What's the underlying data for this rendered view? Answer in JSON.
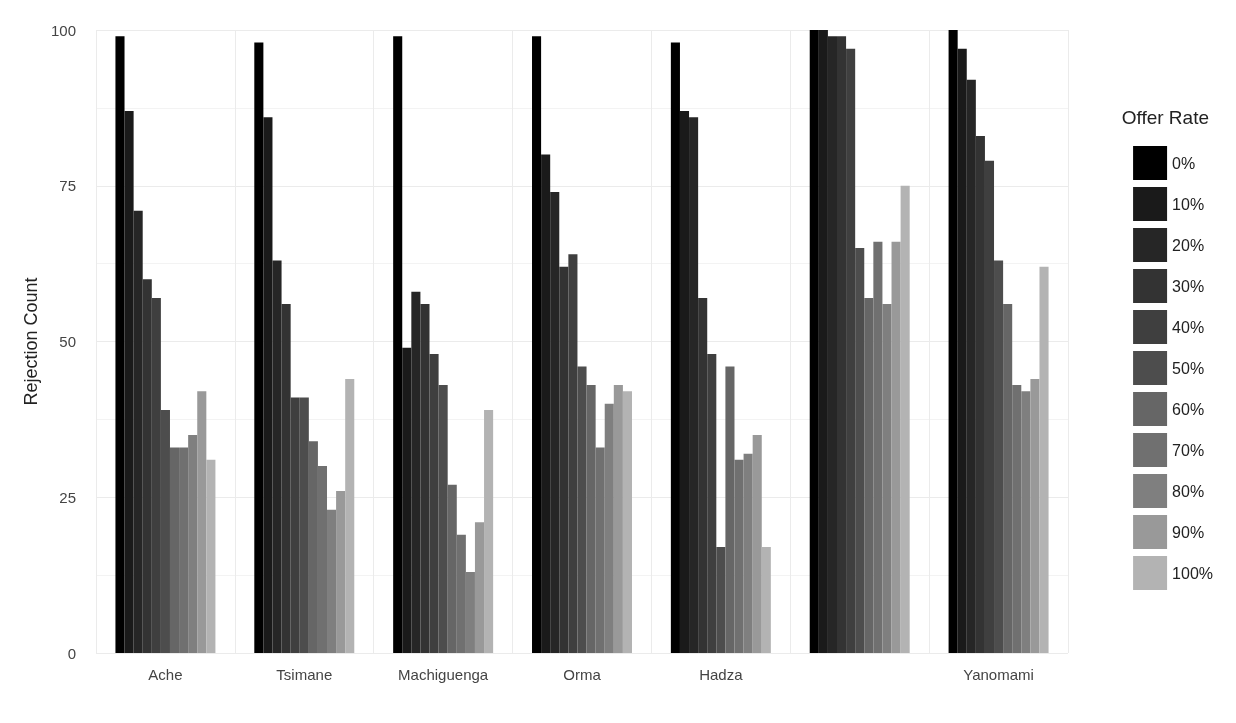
{
  "chart_data": {
    "type": "bar",
    "ylabel": "Rejection Count",
    "legend_title": "Offer Rate",
    "legend": "right",
    "grid": true,
    "categories": [
      "Ache",
      "Tsimane",
      "Machiguenga",
      "Orma",
      "Hadza",
      null,
      "Yanomami"
    ],
    "ylim": [
      0,
      100
    ],
    "yticks": [
      0,
      25,
      50,
      75,
      100
    ],
    "series": [
      {
        "name": "0%",
        "color": "#000000",
        "values": [
          99,
          98,
          99,
          99,
          98,
          100,
          100
        ]
      },
      {
        "name": "10%",
        "color": "#1a1a1a",
        "values": [
          87,
          86,
          49,
          80,
          87,
          100,
          97
        ]
      },
      {
        "name": "20%",
        "color": "#262626",
        "values": [
          71,
          63,
          58,
          74,
          86,
          99,
          92
        ]
      },
      {
        "name": "30%",
        "color": "#333333",
        "values": [
          60,
          56,
          56,
          62,
          57,
          99,
          83
        ]
      },
      {
        "name": "40%",
        "color": "#3f3f3f",
        "values": [
          57,
          41,
          48,
          64,
          48,
          97,
          79
        ]
      },
      {
        "name": "50%",
        "color": "#4d4d4d",
        "values": [
          39,
          41,
          43,
          46,
          17,
          65,
          63
        ]
      },
      {
        "name": "60%",
        "color": "#666666",
        "values": [
          33,
          34,
          27,
          43,
          46,
          57,
          56
        ]
      },
      {
        "name": "70%",
        "color": "#707070",
        "values": [
          33,
          30,
          19,
          33,
          31,
          66,
          43
        ]
      },
      {
        "name": "80%",
        "color": "#7f7f7f",
        "values": [
          35,
          23,
          13,
          40,
          32,
          56,
          42
        ]
      },
      {
        "name": "90%",
        "color": "#999999",
        "values": [
          42,
          26,
          21,
          43,
          35,
          66,
          44
        ]
      },
      {
        "name": "100%",
        "color": "#b3b3b3",
        "values": [
          31,
          44,
          39,
          42,
          17,
          75,
          62
        ]
      }
    ]
  }
}
